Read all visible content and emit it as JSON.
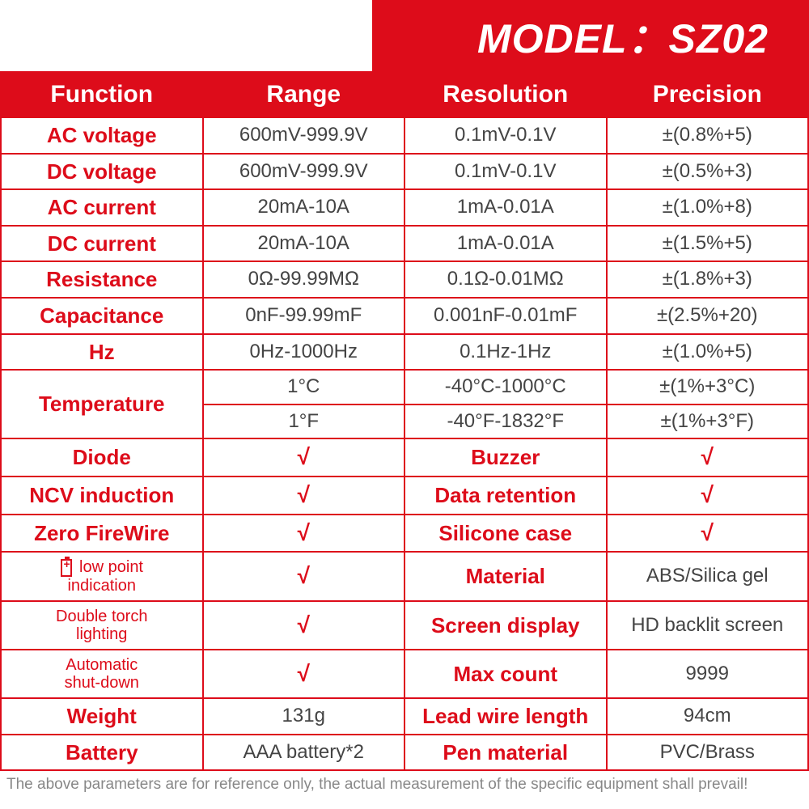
{
  "model_banner": "MODEL：SZ02",
  "headers": [
    "Function",
    "Range",
    "Resolution",
    "Precision"
  ],
  "spec_rows": [
    {
      "func": "AC voltage",
      "range": "600mV-999.9V",
      "res": "0.1mV-0.1V",
      "prec": "±(0.8%+5)"
    },
    {
      "func": "DC voltage",
      "range": "600mV-999.9V",
      "res": "0.1mV-0.1V",
      "prec": "±(0.5%+3)"
    },
    {
      "func": "AC current",
      "range": "20mA-10A",
      "res": "1mA-0.01A",
      "prec": "±(1.0%+8)"
    },
    {
      "func": "DC current",
      "range": "20mA-10A",
      "res": "1mA-0.01A",
      "prec": "±(1.5%+5)"
    },
    {
      "func": "Resistance",
      "range": "0Ω-99.99MΩ",
      "res": "0.1Ω-0.01MΩ",
      "prec": "±(1.8%+3)"
    },
    {
      "func": "Capacitance",
      "range": "0nF-99.99mF",
      "res": "0.001nF-0.01mF",
      "prec": "±(2.5%+20)"
    },
    {
      "func": "Hz",
      "range": "0Hz-1000Hz",
      "res": "0.1Hz-1Hz",
      "prec": "±(1.0%+5)"
    }
  ],
  "temp_label": "Temperature",
  "temp_rows": [
    {
      "range": "1°C",
      "res": "-40°C-1000°C",
      "prec": "±(1%+3°C)"
    },
    {
      "range": "1°F",
      "res": "-40°F-1832°F",
      "prec": "±(1%+3°F)"
    }
  ],
  "feature_rows": [
    {
      "l": "Diode",
      "lv": "√",
      "r": "Buzzer",
      "rv": "√"
    },
    {
      "l": "NCV induction",
      "lv": "√",
      "r": "Data retention",
      "rv": "√"
    },
    {
      "l": "Zero FireWire",
      "lv": "√",
      "r": "Silicone case",
      "rv": "√"
    },
    {
      "l": "low point\nindication",
      "lv": "√",
      "r": "Material",
      "rv": "ABS/Silica gel",
      "icon": true,
      "small": true
    },
    {
      "l": "Double torch\nlighting",
      "lv": "√",
      "r": "Screen display",
      "rv": "HD backlit screen",
      "small": true
    },
    {
      "l": "Automatic\nshut-down",
      "lv": "√",
      "r": "Max count",
      "rv": "9999",
      "small": true
    },
    {
      "l": "Weight",
      "lv": "131g",
      "r": "Lead wire length",
      "rv": "94cm"
    },
    {
      "l": "Battery",
      "lv": "AAA battery*2",
      "r": "Pen material",
      "rv": "PVC/Brass"
    }
  ],
  "footnote": "The above parameters are for reference only, the actual measurement of the specific equipment shall prevail!",
  "colors": {
    "brand_red": "#dd0c1a",
    "text_gray": "#444444",
    "foot_gray": "#888888",
    "background": "#ffffff"
  },
  "checkmark": "√"
}
